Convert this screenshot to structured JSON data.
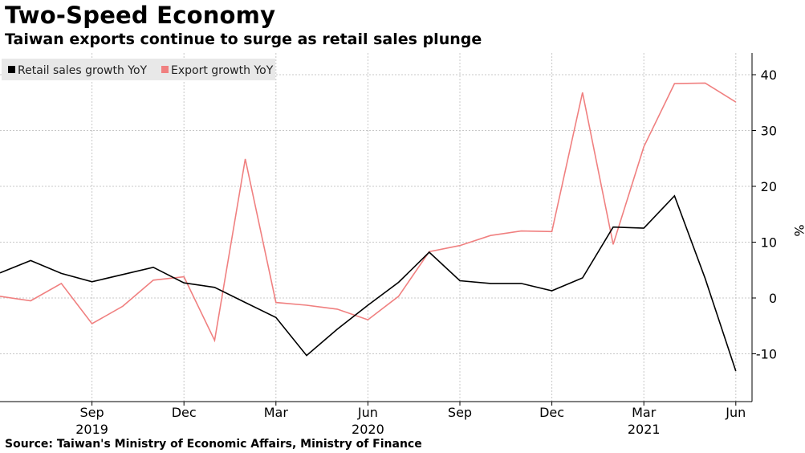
{
  "title": "Two-Speed Economy",
  "subtitle": "Taiwan exports continue to surge as retail sales plunge",
  "source": "Source: Taiwan's Ministry of Economic Affairs, Ministry of Finance",
  "chart_data": {
    "type": "line",
    "x": [
      "2019-06",
      "2019-07",
      "2019-08",
      "2019-09",
      "2019-10",
      "2019-11",
      "2019-12",
      "2020-01",
      "2020-02",
      "2020-03",
      "2020-04",
      "2020-05",
      "2020-06",
      "2020-07",
      "2020-08",
      "2020-09",
      "2020-10",
      "2020-11",
      "2020-12",
      "2021-01",
      "2021-02",
      "2021-03",
      "2021-04",
      "2021-05",
      "2021-06"
    ],
    "series": [
      {
        "name": "Retail sales growth YoY",
        "color": "#000000",
        "values": [
          4.5,
          6.7,
          4.4,
          2.9,
          4.2,
          5.5,
          2.7,
          1.9,
          -0.8,
          -3.5,
          -10.3,
          -5.6,
          -1.3,
          2.8,
          8.2,
          3.1,
          2.6,
          2.6,
          1.3,
          3.6,
          12.7,
          12.5,
          18.3,
          3.5,
          -13.1
        ]
      },
      {
        "name": "Export growth YoY",
        "color": "#f08080",
        "values": [
          0.3,
          -0.5,
          2.6,
          -4.6,
          -1.5,
          3.2,
          3.8,
          -7.6,
          24.9,
          -0.8,
          -1.3,
          -2.0,
          -3.9,
          0.3,
          8.3,
          9.4,
          11.2,
          12.0,
          11.9,
          36.8,
          9.6,
          27.1,
          38.4,
          38.5,
          35.1
        ]
      }
    ],
    "x_ticks": [
      {
        "at": "2019-09",
        "month": "Sep",
        "year": "2019"
      },
      {
        "at": "2019-12",
        "month": "Dec",
        "year": ""
      },
      {
        "at": "2020-03",
        "month": "Mar",
        "year": ""
      },
      {
        "at": "2020-06",
        "month": "Jun",
        "year": "2020"
      },
      {
        "at": "2020-09",
        "month": "Sep",
        "year": ""
      },
      {
        "at": "2020-12",
        "month": "Dec",
        "year": ""
      },
      {
        "at": "2021-03",
        "month": "Mar",
        "year": "2021"
      },
      {
        "at": "2021-06",
        "month": "Jun",
        "year": ""
      }
    ],
    "y_ticks": [
      -10,
      0,
      10,
      20,
      30,
      40
    ],
    "ylim": [
      -18.5,
      44
    ],
    "ylabel": "%",
    "y_axis_side": "right",
    "grid": true,
    "legend_position": "top-left"
  }
}
